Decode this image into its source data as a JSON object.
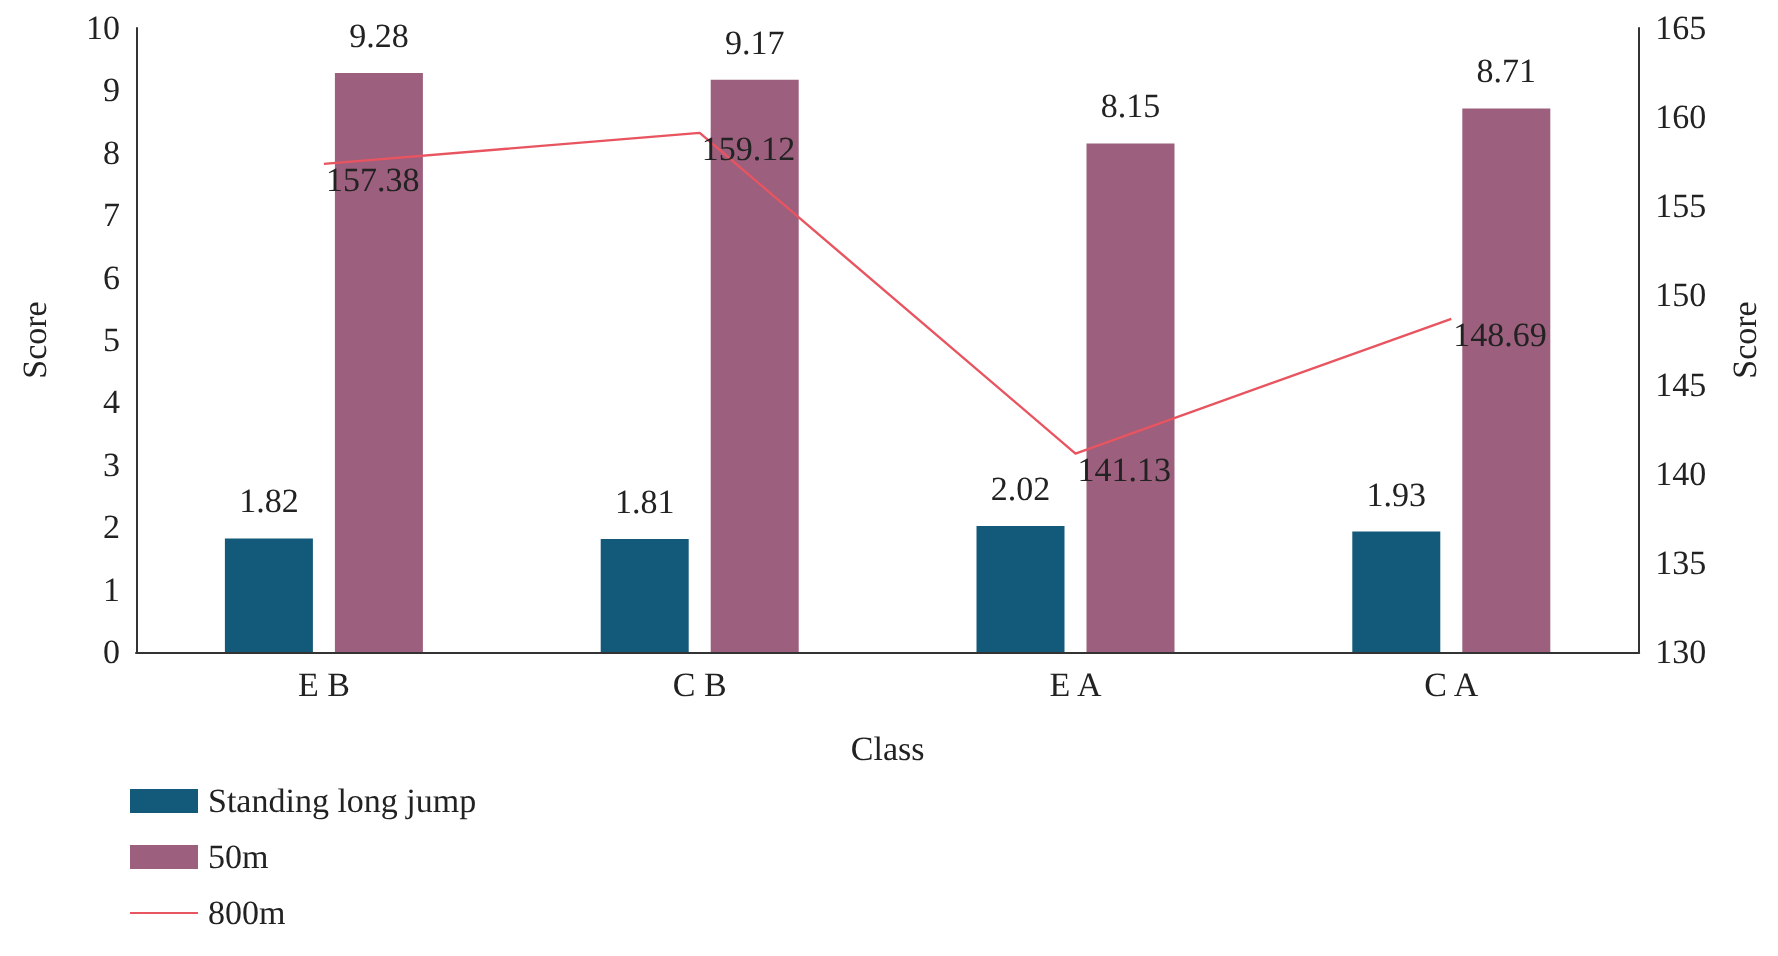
{
  "chart_data": {
    "type": "bar",
    "xlabel": "Class",
    "ylabel": "Score",
    "y2label": "Score",
    "categories": [
      "E B",
      "C B",
      "E A",
      "C A"
    ],
    "series": [
      {
        "name": "Standing long jump",
        "color": "#135a7a",
        "values": [
          1.82,
          1.81,
          2.02,
          1.93
        ]
      },
      {
        "name": "50m",
        "color": "#9c5f7d",
        "values": [
          9.28,
          9.17,
          8.15,
          8.71
        ]
      },
      {
        "name": "800m",
        "type": "line",
        "axis": "y2",
        "color": "#e8545f",
        "values": [
          157.38,
          159.12,
          141.13,
          148.69
        ],
        "marker": "none"
      }
    ],
    "ylim": [
      0,
      10
    ],
    "yticks": [
      0,
      1,
      2,
      3,
      4,
      5,
      6,
      7,
      8,
      9,
      10
    ],
    "y2lim": [
      130,
      165
    ],
    "y2ticks": [
      130,
      135,
      140,
      145,
      150,
      155,
      160,
      165
    ],
    "data_labels": true,
    "grid": false,
    "legend": "bottom left"
  }
}
